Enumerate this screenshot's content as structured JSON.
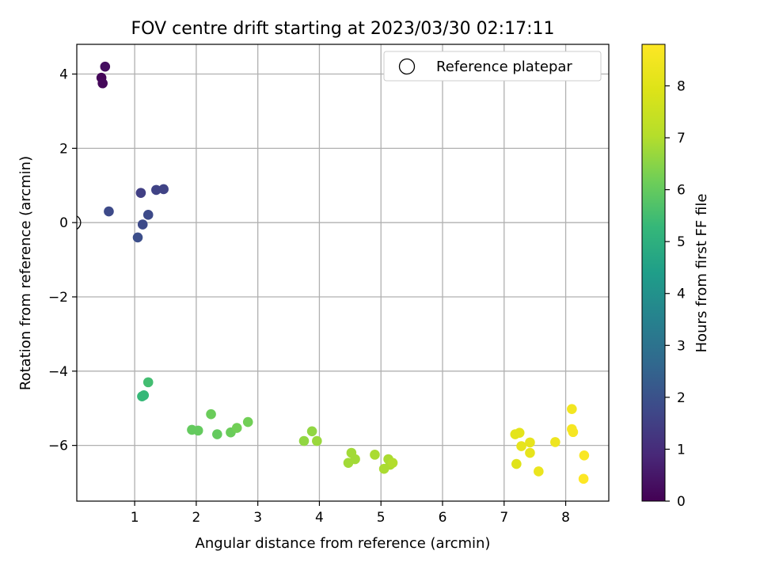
{
  "chart_data": {
    "type": "scatter",
    "title": "FOV centre drift starting at 2023/03/30 02:17:11",
    "xlabel": "Angular distance from reference (arcmin)",
    "ylabel": "Rotation from reference (arcmin)",
    "xlim": [
      0.06,
      8.7
    ],
    "ylim": [
      -7.5,
      4.8
    ],
    "xticks": [
      1,
      2,
      3,
      4,
      5,
      6,
      7,
      8
    ],
    "yticks": [
      -6,
      -4,
      -2,
      0,
      2,
      4
    ],
    "grid": true,
    "legend": {
      "position": "top-right",
      "entries": [
        "Reference platepar"
      ]
    },
    "reference_point": {
      "x": 0,
      "y": 0
    },
    "colorbar": {
      "label": "Hours from first FF file",
      "range": [
        0,
        8.8
      ],
      "ticks": [
        0,
        1,
        2,
        3,
        4,
        5,
        6,
        7,
        8
      ],
      "colormap": "viridis"
    },
    "points": [
      {
        "x": 0.46,
        "y": 3.9,
        "c": 0.1
      },
      {
        "x": 0.48,
        "y": 3.75,
        "c": 0.15
      },
      {
        "x": 0.52,
        "y": 4.2,
        "c": 0.3
      },
      {
        "x": 0.58,
        "y": 0.3,
        "c": 1.8
      },
      {
        "x": 1.1,
        "y": 0.8,
        "c": 1.5
      },
      {
        "x": 1.35,
        "y": 0.88,
        "c": 1.6
      },
      {
        "x": 1.47,
        "y": 0.9,
        "c": 1.6
      },
      {
        "x": 1.22,
        "y": 0.21,
        "c": 1.8
      },
      {
        "x": 1.13,
        "y": -0.05,
        "c": 1.8
      },
      {
        "x": 1.05,
        "y": -0.4,
        "c": 1.9
      },
      {
        "x": 1.12,
        "y": -4.68,
        "c": 5.3
      },
      {
        "x": 1.15,
        "y": -4.65,
        "c": 5.3
      },
      {
        "x": 1.22,
        "y": -4.3,
        "c": 5.5
      },
      {
        "x": 1.93,
        "y": -5.58,
        "c": 6.0
      },
      {
        "x": 2.03,
        "y": -5.6,
        "c": 6.0
      },
      {
        "x": 2.24,
        "y": -5.16,
        "c": 6.1
      },
      {
        "x": 2.34,
        "y": -5.7,
        "c": 6.0
      },
      {
        "x": 2.56,
        "y": -5.65,
        "c": 6.1
      },
      {
        "x": 2.66,
        "y": -5.53,
        "c": 6.2
      },
      {
        "x": 2.84,
        "y": -5.37,
        "c": 6.2
      },
      {
        "x": 3.75,
        "y": -5.88,
        "c": 6.6
      },
      {
        "x": 3.88,
        "y": -5.62,
        "c": 6.6
      },
      {
        "x": 3.96,
        "y": -5.88,
        "c": 6.7
      },
      {
        "x": 4.47,
        "y": -6.47,
        "c": 6.8
      },
      {
        "x": 4.52,
        "y": -6.2,
        "c": 6.8
      },
      {
        "x": 4.58,
        "y": -6.37,
        "c": 6.8
      },
      {
        "x": 4.9,
        "y": -6.25,
        "c": 6.9
      },
      {
        "x": 5.05,
        "y": -6.63,
        "c": 6.9
      },
      {
        "x": 5.12,
        "y": -6.37,
        "c": 6.9
      },
      {
        "x": 5.15,
        "y": -6.52,
        "c": 6.9
      },
      {
        "x": 5.19,
        "y": -6.47,
        "c": 7.0
      },
      {
        "x": 7.18,
        "y": -5.7,
        "c": 8.1
      },
      {
        "x": 7.25,
        "y": -5.66,
        "c": 8.1
      },
      {
        "x": 7.2,
        "y": -6.5,
        "c": 8.0
      },
      {
        "x": 7.28,
        "y": -6.02,
        "c": 8.2
      },
      {
        "x": 7.42,
        "y": -5.92,
        "c": 8.2
      },
      {
        "x": 7.42,
        "y": -6.2,
        "c": 8.2
      },
      {
        "x": 7.56,
        "y": -6.7,
        "c": 8.3
      },
      {
        "x": 7.83,
        "y": -5.91,
        "c": 8.4
      },
      {
        "x": 8.1,
        "y": -5.02,
        "c": 8.5
      },
      {
        "x": 8.1,
        "y": -5.56,
        "c": 8.6
      },
      {
        "x": 8.12,
        "y": -5.64,
        "c": 8.6
      },
      {
        "x": 8.3,
        "y": -6.27,
        "c": 8.7
      },
      {
        "x": 8.29,
        "y": -6.9,
        "c": 8.8
      }
    ]
  }
}
